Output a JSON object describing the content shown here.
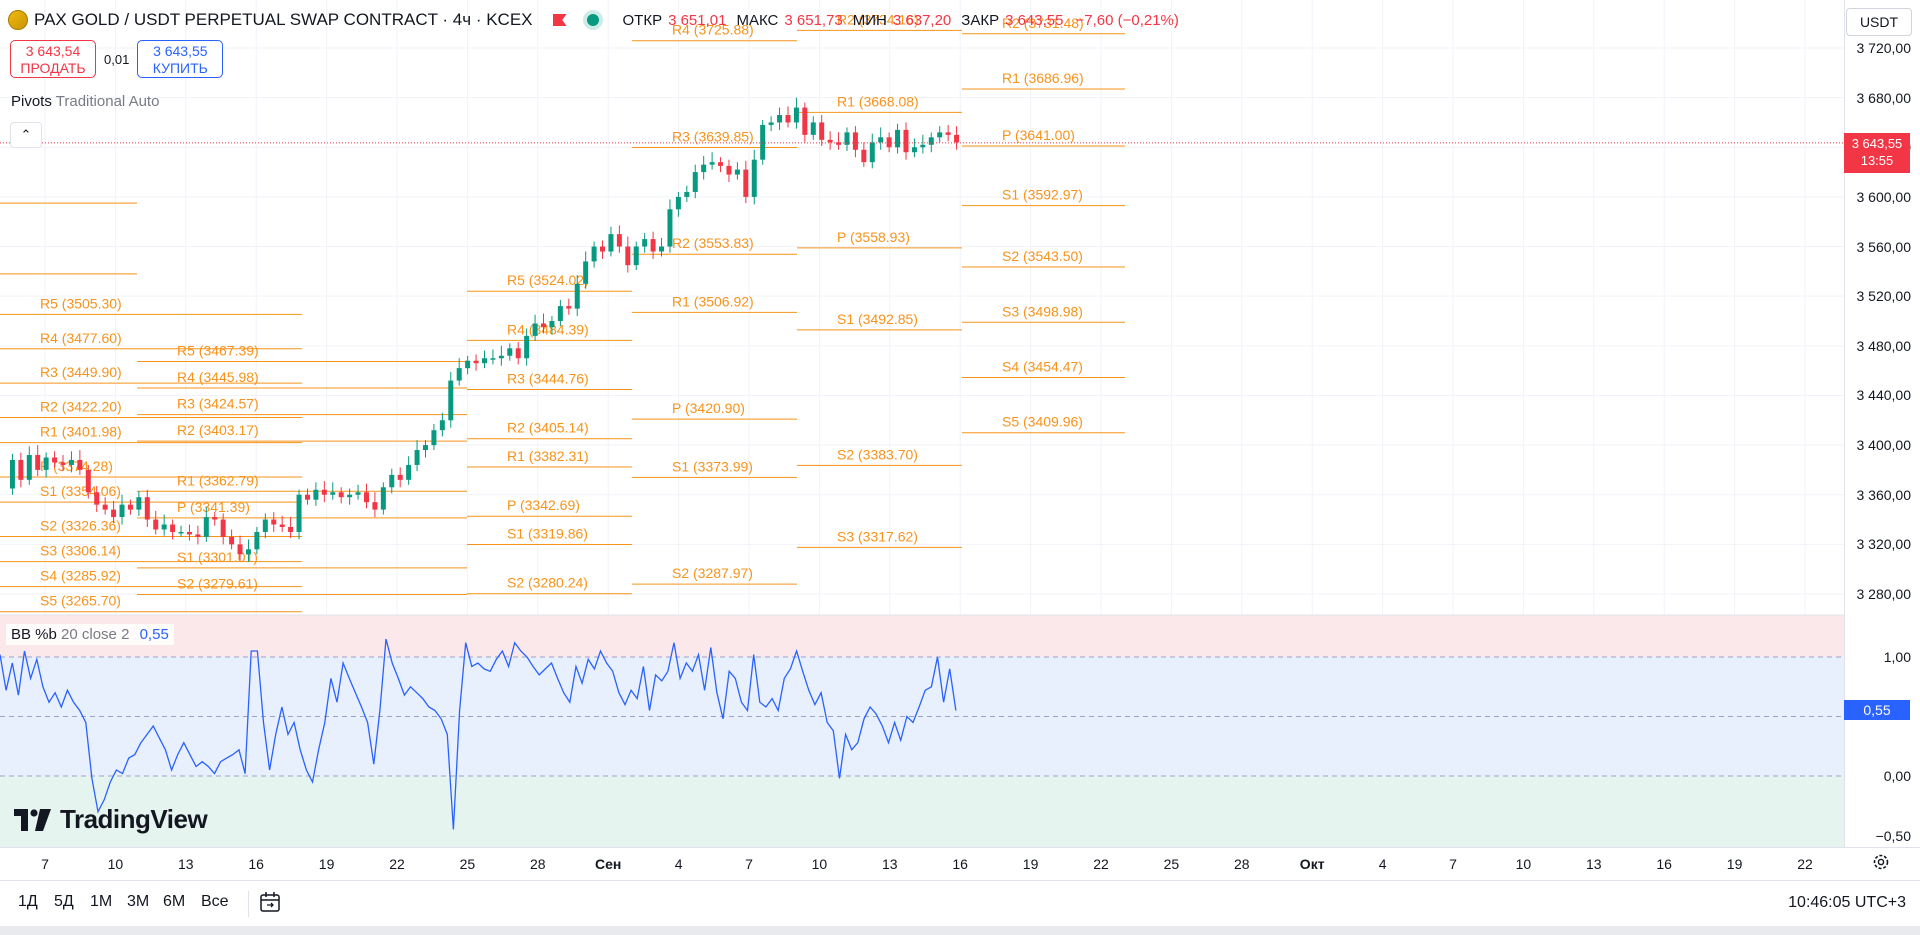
{
  "header": {
    "symbol": "PAX GOLD / USDT PERPETUAL SWAP CONTRACT · 4ч · KCEX",
    "ohlc": {
      "open_label": "ОТКР",
      "open": "3 651,01",
      "high_label": "МАКС",
      "high": "3 651,73",
      "low_label": "МИН",
      "low": "3 637,20",
      "close_label": "ЗАКР",
      "close": "3 643,55",
      "change": "−7,60 (−0,21%)"
    }
  },
  "trade": {
    "sell_price": "3 643,54",
    "sell_label": "ПРОДАТЬ",
    "spread": "0,01",
    "buy_price": "3 643,55",
    "buy_label": "КУПИТЬ"
  },
  "indicators": {
    "pivots_name": "Pivots",
    "pivots_params": "Traditional Auto",
    "osc_name": "BB %b",
    "osc_params": "20 close 2",
    "osc_value": "0,55"
  },
  "currency": "USDT",
  "current_price": {
    "price": "3 643,55",
    "countdown": "13:55",
    "value": 3643.55
  },
  "price_axis": {
    "labels": [
      "3 720,00",
      "3 680,00",
      "3 640,00",
      "3 600,00",
      "3 560,00",
      "3 520,00",
      "3 480,00",
      "3 440,00",
      "3 400,00",
      "3 360,00",
      "3 320,00",
      "3 280,00"
    ],
    "values": [
      3720,
      3680,
      3640,
      3600,
      3560,
      3520,
      3480,
      3440,
      3400,
      3360,
      3320,
      3280
    ]
  },
  "osc_axis": {
    "labels": [
      "1,00",
      "0,00",
      "−0,50"
    ],
    "values": [
      1.0,
      0.0,
      -0.5
    ],
    "mid_value": 0.5
  },
  "time_axis": {
    "labels": [
      "7",
      "10",
      "13",
      "16",
      "19",
      "22",
      "25",
      "28",
      "Сен",
      "4",
      "7",
      "10",
      "13",
      "16",
      "19",
      "22",
      "25",
      "28",
      "Окт",
      "4",
      "7",
      "10",
      "13",
      "16",
      "19",
      "22"
    ],
    "bold": [
      false,
      false,
      false,
      false,
      false,
      false,
      false,
      false,
      true,
      false,
      false,
      false,
      false,
      false,
      false,
      false,
      false,
      false,
      true,
      false,
      false,
      false,
      false,
      false,
      false,
      false
    ]
  },
  "chart_data": [
    {
      "type": "line",
      "name": "Pivots Traditional Auto",
      "periods": [
        {
          "levels": [
            {
              "label": "R5 (3505.30)",
              "value": 3505.3
            },
            {
              "label": "R4 (3477.60)",
              "value": 3477.6
            },
            {
              "label": "R3 (3449.90)",
              "value": 3449.9
            },
            {
              "label": "R2 (3422.20)",
              "value": 3422.2
            },
            {
              "label": "R1 (3401.98)",
              "value": 3401.98
            },
            {
              "label": "P (3374.28)",
              "value": 3374.28
            },
            {
              "label": "S1 (3354.06)",
              "value": 3354.06
            },
            {
              "label": "S2 (3326.36)",
              "value": 3326.36
            },
            {
              "label": "S3 (3306.14)",
              "value": 3306.14
            },
            {
              "label": "S4 (3285.92)",
              "value": 3285.92
            },
            {
              "label": "S5 (3265.70)",
              "value": 3265.7
            }
          ]
        },
        {
          "levels": [
            {
              "label": "R5 (3467.39)",
              "value": 3467.39
            },
            {
              "label": "R4 (3445.98)",
              "value": 3445.98
            },
            {
              "label": "R3 (3424.57)",
              "value": 3424.57
            },
            {
              "label": "R2 (3403.17)",
              "value": 3403.17
            },
            {
              "label": "R1 (3362.79)",
              "value": 3362.79
            },
            {
              "label": "P (3341.39)",
              "value": 3341.39
            },
            {
              "label": "S1 (3301.01)",
              "value": 3301.01
            },
            {
              "label": "S2 (3279.61)",
              "value": 3279.61
            }
          ]
        },
        {
          "levels": [
            {
              "label": "R5 (3524.02)",
              "value": 3524.02
            },
            {
              "label": "R4 (3484.39)",
              "value": 3484.39
            },
            {
              "label": "R3 (3444.76)",
              "value": 3444.76
            },
            {
              "label": "R2 (3405.14)",
              "value": 3405.14
            },
            {
              "label": "R1 (3382.31)",
              "value": 3382.31
            },
            {
              "label": "P (3342.69)",
              "value": 3342.69
            },
            {
              "label": "S1 (3319.86)",
              "value": 3319.86
            },
            {
              "label": "S2 (3280.24)",
              "value": 3280.24
            }
          ]
        },
        {
          "levels": [
            {
              "label": "R4 (3725.88)",
              "value": 3725.88
            },
            {
              "label": "R3 (3639.85)",
              "value": 3639.85
            },
            {
              "label": "R2 (3553.83)",
              "value": 3553.83
            },
            {
              "label": "R1 (3506.92)",
              "value": 3506.92
            },
            {
              "label": "P (3420.90)",
              "value": 3420.9
            },
            {
              "label": "S1 (3373.99)",
              "value": 3373.99
            },
            {
              "label": "S2 (3287.97)",
              "value": 3287.97
            }
          ]
        },
        {
          "levels": [
            {
              "label": "R2 (3734.16)",
              "value": 3734.16
            },
            {
              "label": "R1 (3668.08)",
              "value": 3668.08
            },
            {
              "label": "P (3558.93)",
              "value": 3558.93
            },
            {
              "label": "S1 (3492.85)",
              "value": 3492.85
            },
            {
              "label": "S2 (3383.70)",
              "value": 3383.7
            },
            {
              "label": "S3 (3317.62)",
              "value": 3317.62
            }
          ]
        },
        {
          "levels": [
            {
              "label": "R2 (3731.48)",
              "value": 3731.48
            },
            {
              "label": "R1 (3686.96)",
              "value": 3686.96
            },
            {
              "label": "P (3641.00)",
              "value": 3641.0
            },
            {
              "label": "S1 (3592.97)",
              "value": 3592.97
            },
            {
              "label": "S2 (3543.50)",
              "value": 3543.5
            },
            {
              "label": "S3 (3498.98)",
              "value": 3498.98
            },
            {
              "label": "S4 (3454.47)",
              "value": 3454.47
            },
            {
              "label": "S5 (3409.96)",
              "value": 3409.96
            }
          ]
        }
      ],
      "extra_levels": [
        3595,
        3538
      ]
    },
    {
      "type": "line",
      "name": "Price (approx. close path)",
      "y": [
        3365,
        3388,
        3372,
        3392,
        3380,
        3390,
        3386,
        3384,
        3388,
        3380,
        3362,
        3352,
        3348,
        3342,
        3352,
        3348,
        3358,
        3340,
        3332,
        3336,
        3330,
        3330,
        3328,
        3326,
        3342,
        3340,
        3326,
        3320,
        3312,
        3316,
        3330,
        3340,
        3336,
        3334,
        3330,
        3360,
        3356,
        3364,
        3360,
        3362,
        3358,
        3360,
        3362,
        3354,
        3348,
        3366,
        3376,
        3372,
        3384,
        3396,
        3400,
        3412,
        3420,
        3452,
        3462,
        3468,
        3466,
        3470,
        3470,
        3472,
        3478,
        3470,
        3488,
        3498,
        3495,
        3500,
        3512,
        3510,
        3530,
        3548,
        3560,
        3556,
        3570,
        3560,
        3545,
        3560,
        3566,
        3556,
        3560,
        3590,
        3600,
        3604,
        3620,
        3626,
        3628,
        3625,
        3618,
        3622,
        3600,
        3630,
        3658,
        3660,
        3666,
        3660,
        3672,
        3650,
        3660,
        3646,
        3644,
        3642,
        3652,
        3638,
        3628,
        3644,
        3648,
        3640,
        3654,
        3636,
        3640,
        3642,
        3648,
        3652,
        3650,
        3644
      ],
      "ylim": [
        3265,
        3745
      ]
    },
    {
      "type": "line",
      "name": "BB %b",
      "y": [
        1.02,
        0.72,
        0.95,
        0.68,
        1.05,
        0.82,
        0.98,
        0.75,
        0.62,
        0.7,
        0.58,
        0.72,
        0.62,
        0.55,
        0.45,
        -0.02,
        -0.3,
        -0.2,
        -0.05,
        0.05,
        0.02,
        0.15,
        0.18,
        0.28,
        0.35,
        0.42,
        0.32,
        0.22,
        0.05,
        0.18,
        0.28,
        0.18,
        0.08,
        0.12,
        0.08,
        0.02,
        0.12,
        0.15,
        0.18,
        0.22,
        0.02,
        1.05,
        1.05,
        0.45,
        0.05,
        0.35,
        0.58,
        0.35,
        0.45,
        0.22,
        0.05,
        -0.05,
        0.22,
        0.45,
        0.82,
        0.62,
        0.95,
        0.82,
        0.7,
        0.58,
        0.45,
        0.1,
        0.55,
        1.15,
        0.95,
        0.82,
        0.68,
        0.75,
        0.7,
        0.65,
        0.58,
        0.55,
        0.48,
        0.35,
        -0.45,
        0.55,
        1.12,
        0.92,
        0.95,
        0.9,
        0.88,
        0.98,
        1.05,
        0.92,
        1.12,
        1.05,
        1.0,
        0.92,
        0.85,
        0.9,
        0.95,
        0.82,
        0.7,
        0.62,
        0.92,
        0.78,
        0.98,
        0.9,
        1.05,
        0.95,
        0.88,
        0.7,
        0.6,
        0.72,
        0.65,
        0.92,
        0.55,
        0.85,
        0.8,
        0.88,
        1.12,
        0.82,
        0.95,
        0.88,
        1.02,
        0.72,
        1.08,
        0.7,
        0.48,
        0.88,
        0.82,
        0.62,
        0.55,
        1.02,
        0.62,
        0.58,
        0.65,
        0.55,
        0.82,
        0.9,
        1.05,
        0.88,
        0.72,
        0.6,
        0.7,
        0.45,
        0.38,
        -0.02,
        0.35,
        0.22,
        0.28,
        0.48,
        0.58,
        0.52,
        0.42,
        0.28,
        0.45,
        0.3,
        0.5,
        0.45,
        0.58,
        0.72,
        0.75,
        1.0,
        0.62,
        0.9,
        0.55
      ],
      "ylim": [
        -0.6,
        1.4
      ]
    }
  ],
  "bottom_bar": {
    "ranges": [
      "1Д",
      "5Д",
      "1М",
      "3М",
      "6М",
      "Все"
    ],
    "clock": "10:46:05 UTC+3"
  },
  "branding": {
    "logo_text": "TradingView"
  },
  "colors": {
    "up": "#089981",
    "down": "#f23645",
    "pivot": "#f7931a",
    "osc": "#2962ff"
  }
}
